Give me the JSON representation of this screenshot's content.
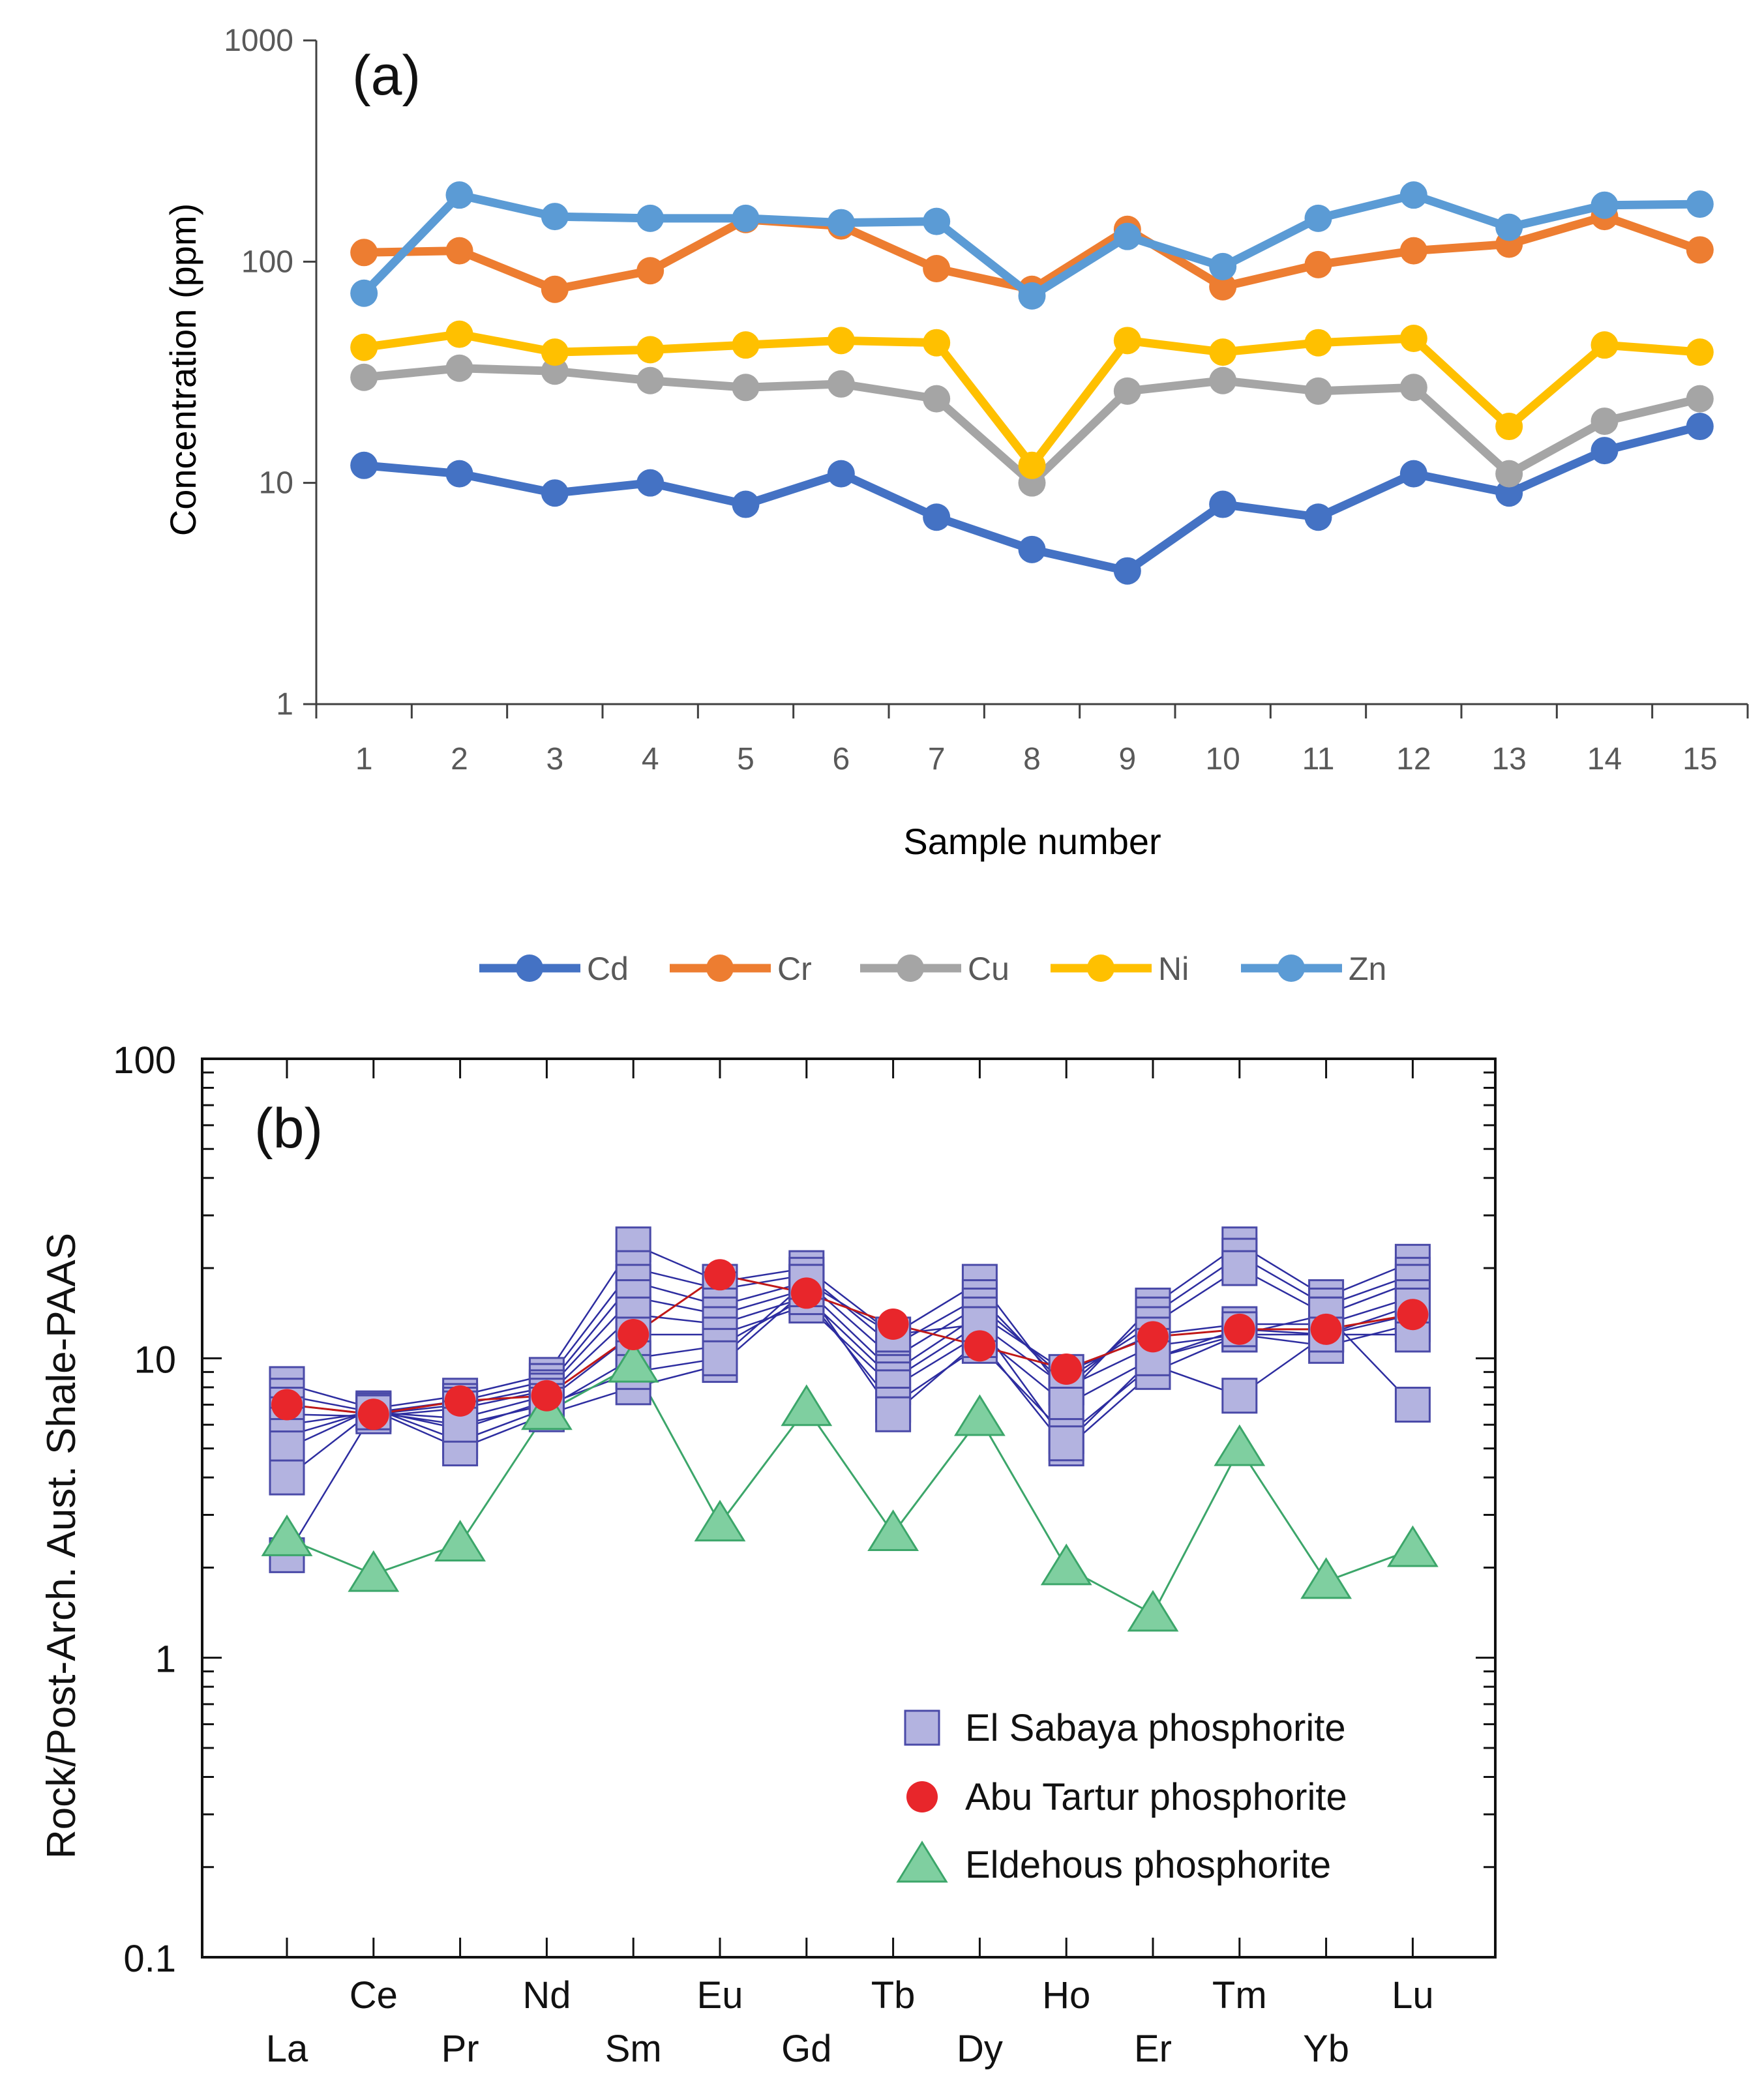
{
  "chart_data": [
    {
      "type": "line",
      "panel_label": "(a)",
      "xlabel": "Sample number",
      "ylabel": "Concentration (ppm)",
      "yscale": "log",
      "ylim": [
        1,
        1000
      ],
      "y_ticks": [
        "1",
        "10",
        "100",
        "1000"
      ],
      "categories": [
        "1",
        "2",
        "3",
        "4",
        "5",
        "6",
        "7",
        "8",
        "9",
        "10",
        "11",
        "12",
        "13",
        "14",
        "15"
      ],
      "legend_position": "bottom-center",
      "series": [
        {
          "name": "Cd",
          "color": "#4472C4",
          "values": [
            12,
            11,
            9,
            10,
            8,
            11,
            7,
            5,
            4,
            8,
            7,
            11,
            9,
            14,
            18
          ]
        },
        {
          "name": "Cr",
          "color": "#ED7D31",
          "values": [
            110,
            112,
            75,
            91,
            155,
            145,
            93,
            75,
            140,
            77,
            97,
            112,
            120,
            160,
            113
          ]
        },
        {
          "name": "Cu",
          "color": "#A5A5A5",
          "values": [
            30,
            33,
            32,
            29,
            27,
            28,
            24,
            10,
            26,
            29,
            26,
            27,
            11,
            19,
            24
          ]
        },
        {
          "name": "Ni",
          "color": "#FFC000",
          "values": [
            41,
            47,
            39,
            40,
            42,
            44,
            43,
            12,
            44,
            39,
            43,
            45,
            18,
            42,
            39
          ]
        },
        {
          "name": "Zn",
          "color": "#5B9BD5",
          "values": [
            72,
            200,
            160,
            157,
            157,
            150,
            152,
            70,
            130,
            95,
            157,
            200,
            143,
            180,
            182
          ]
        }
      ]
    },
    {
      "type": "line",
      "panel_label": "(b)",
      "xlabel": "",
      "ylabel": "Rock/Post-Arch. Aust. Shale-PAAS",
      "yscale": "log",
      "ylim": [
        0.1,
        100
      ],
      "y_ticks": [
        "0.1",
        "1",
        "10",
        "100"
      ],
      "categories": [
        "La",
        "Ce",
        "Pr",
        "Nd",
        "Sm",
        "Eu",
        "Gd",
        "Tb",
        "Dy",
        "Ho",
        "Er",
        "Tm",
        "Yb",
        "Lu"
      ],
      "legend_position": "bottom-right",
      "legend": [
        "El Sabaya phosphorite",
        "Abu Tartur phosphorite",
        "Eldehous phosphorite"
      ],
      "series": [
        {
          "name": "El Sabaya phosphorite",
          "color": "#B3B3E0",
          "line_color": "#2D2DA0",
          "marker": "square",
          "group": true,
          "samples": [
            [
              8.2,
              6.8,
              7.5,
              8.8,
              24,
              18,
              20,
              12,
              18,
              7.5,
              15,
              24,
              16,
              21
            ],
            [
              7.5,
              6.6,
              7.2,
              8.4,
              20,
              17,
              19,
              11,
              16,
              8.0,
              14,
              22,
              15,
              19
            ],
            [
              7.0,
              6.5,
              7.0,
              8.0,
              18,
              15,
              18,
              10,
              15,
              8.5,
              13,
              20,
              14,
              18
            ],
            [
              6.5,
              6.4,
              6.8,
              7.8,
              16,
              14,
              17,
              9.0,
              14,
              9.0,
              12,
              13,
              13,
              16
            ],
            [
              6.0,
              6.6,
              6.3,
              7.5,
              14,
              13,
              16,
              8.5,
              13,
              8.0,
              11,
              12,
              12,
              14
            ],
            [
              5.5,
              6.7,
              5.8,
              7.2,
              12,
              12,
              15,
              8.0,
              12,
              7.0,
              10,
              12,
              11,
              13
            ],
            [
              5.0,
              6.8,
              5.3,
              6.8,
              10,
              11,
              16,
              7.0,
              11,
              5.5,
              9.5,
              7.5,
              12,
              12
            ],
            [
              4.0,
              6.7,
              5.0,
              6.5,
              8.0,
              9.5,
              17,
              6.5,
              11.5,
              5.0,
              9.0,
              12,
              14,
              7.0
            ],
            [
              2.2,
              6.6,
              6.0,
              7.0,
              9.0,
              10,
              18,
              12,
              13,
              5.2,
              10,
              12.5,
              12,
              15
            ]
          ]
        },
        {
          "name": "Abu Tartur phosphorite",
          "color": "#E8262B",
          "line_color": "#C01818",
          "marker": "circle",
          "values": [
            7.0,
            6.5,
            7.2,
            7.5,
            12,
            19,
            16.5,
            13,
            11,
            9.2,
            11.8,
            12.5,
            12.5,
            14
          ]
        },
        {
          "name": "Eldehous phosphorite",
          "color": "#7FCFA0",
          "line_color": "#3CA66A",
          "marker": "triangle",
          "values": [
            2.5,
            1.9,
            2.4,
            6.6,
            9.5,
            2.8,
            6.8,
            2.6,
            6.3,
            2.0,
            1.4,
            5.0,
            1.8,
            2.3
          ]
        }
      ]
    }
  ]
}
